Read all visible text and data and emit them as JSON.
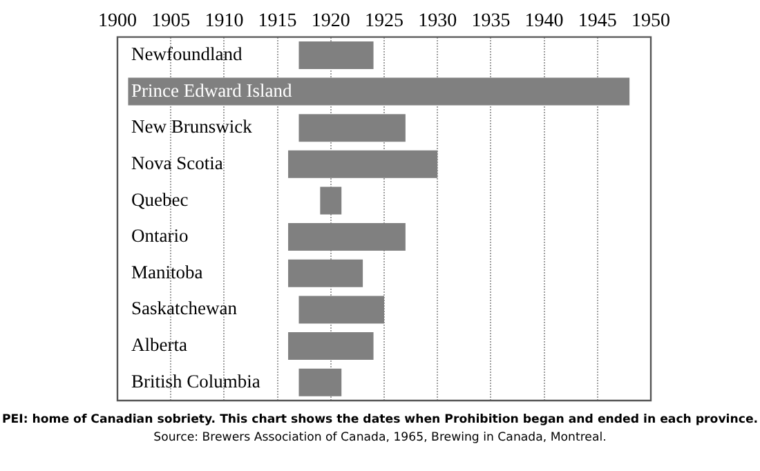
{
  "chart_data": {
    "type": "bar",
    "orientation": "horizontal",
    "categories": [
      "Newfoundland",
      "Prince Edward Island",
      "New Brunswick",
      "Nova Scotia",
      "Quebec",
      "Ontario",
      "Manitoba",
      "Saskatchewan",
      "Alberta",
      "British Columbia"
    ],
    "base": [
      1917,
      1901,
      1917,
      1916,
      1919,
      1916,
      1916,
      1917,
      1916,
      1917
    ],
    "values": [
      7,
      47,
      10,
      14,
      2,
      11,
      7,
      8,
      8,
      4
    ],
    "color": "#808080",
    "xlim": [
      1900,
      1950
    ],
    "xticks": [
      1900,
      1905,
      1910,
      1915,
      1920,
      1925,
      1930,
      1935,
      1940,
      1945,
      1950
    ],
    "grid": "x",
    "legend": false,
    "annotations": [
      "PEI: home of Canadian sobriety. This chart shows the dates when Prohibition began and ended in each province.",
      "Source: Brewers Association of Canada, 1965, Brewing in Canada, Montreal."
    ]
  }
}
